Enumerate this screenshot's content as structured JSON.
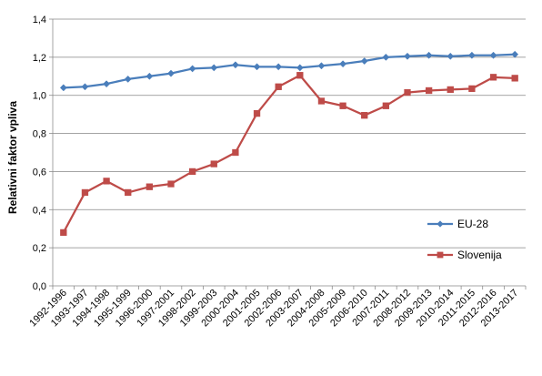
{
  "chart_data": {
    "type": "line",
    "xlabel": "",
    "ylabel": "Relativni faktor vpliva",
    "ylim": [
      0,
      1.4
    ],
    "y_ticks": [
      "0,0",
      "0,2",
      "0,4",
      "0,6",
      "0,8",
      "1,0",
      "1,2",
      "1,4"
    ],
    "y_tick_values": [
      0,
      0.2,
      0.4,
      0.6,
      0.8,
      1.0,
      1.2,
      1.4
    ],
    "grid": true,
    "legend_position": "right",
    "categories": [
      "1992-1996",
      "1993-1997",
      "1994-1998",
      "1995-1999",
      "1996-2000",
      "1997-2001",
      "1998-2002",
      "1999-2003",
      "2000-2004",
      "2001-2005",
      "2002-2006",
      "2003-2007",
      "2004-2008",
      "2005-2009",
      "2006-2010",
      "2007-2011",
      "2008-2012",
      "2009-2013",
      "2010-2014",
      "2011-2015",
      "2012-2016",
      "2013-2017"
    ],
    "series": [
      {
        "name": "EU-28",
        "color": "#4a7ebb",
        "marker": "diamond",
        "values": [
          1.04,
          1.045,
          1.06,
          1.085,
          1.1,
          1.115,
          1.14,
          1.145,
          1.16,
          1.15,
          1.15,
          1.145,
          1.155,
          1.165,
          1.18,
          1.2,
          1.205,
          1.21,
          1.205,
          1.21,
          1.21,
          1.215
        ]
      },
      {
        "name": "Slovenija",
        "color": "#be4b48",
        "marker": "square",
        "values": [
          0.28,
          0.49,
          0.55,
          0.49,
          0.52,
          0.535,
          0.6,
          0.64,
          0.7,
          0.905,
          1.045,
          1.105,
          0.97,
          0.945,
          0.895,
          0.945,
          1.015,
          1.025,
          1.03,
          1.035,
          1.095,
          1.09
        ]
      }
    ]
  }
}
